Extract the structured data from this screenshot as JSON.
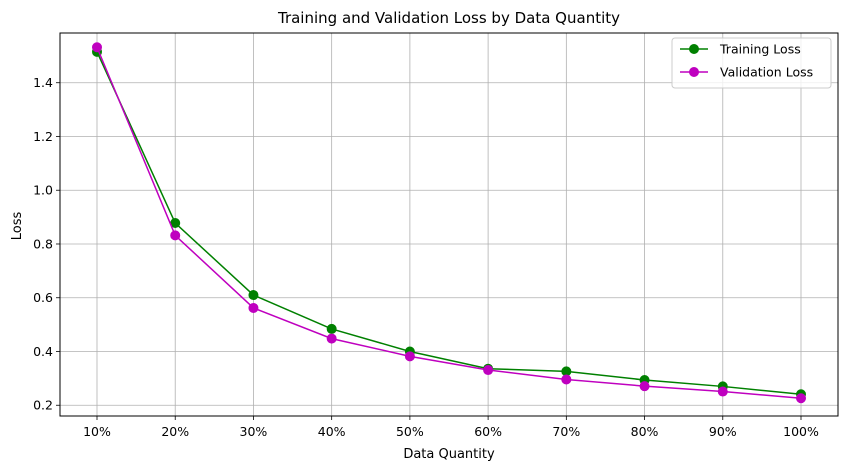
{
  "chart_data": {
    "type": "line",
    "title": "Training and Validation Loss by Data Quantity",
    "xlabel": "Data Quantity",
    "ylabel": "Loss",
    "categories": [
      "10%",
      "20%",
      "30%",
      "40%",
      "50%",
      "60%",
      "70%",
      "80%",
      "90%",
      "100%"
    ],
    "ylim": [
      0.16,
      1.585
    ],
    "yticks": [
      0.2,
      0.4,
      0.6,
      0.8,
      1.0,
      1.2,
      1.4
    ],
    "ytick_labels": [
      "0.2",
      "0.4",
      "0.6",
      "0.8",
      "1.0",
      "1.2",
      "1.4"
    ],
    "grid": true,
    "legend_position": "top-right",
    "series": [
      {
        "name": "Training Loss",
        "color": "#008000",
        "marker": "circle",
        "values": [
          1.515,
          0.878,
          0.61,
          0.484,
          0.4,
          0.336,
          0.326,
          0.294,
          0.27,
          0.241
        ]
      },
      {
        "name": "Validation Loss",
        "color": "#bf00bf",
        "marker": "circle",
        "values": [
          1.532,
          0.832,
          0.562,
          0.448,
          0.382,
          0.331,
          0.296,
          0.271,
          0.251,
          0.226
        ]
      }
    ]
  }
}
